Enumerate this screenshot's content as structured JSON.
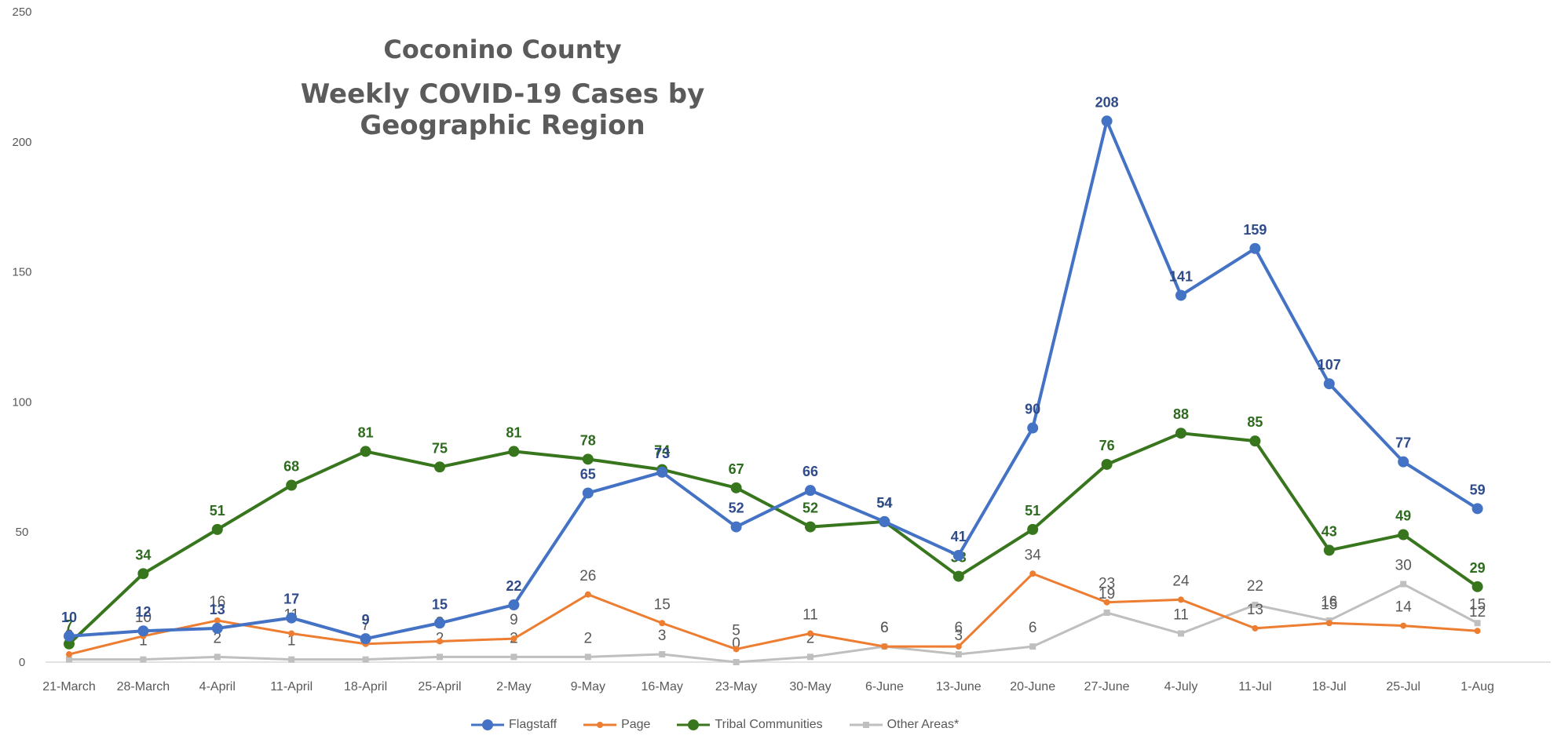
{
  "chart_data": {
    "type": "line",
    "title": "Coconino County",
    "subtitle": "Weekly COVID-19 Cases by Geographic Region",
    "xlabel": "",
    "ylabel": "",
    "ylim": [
      0,
      250
    ],
    "yticks": [
      0,
      50,
      100,
      150,
      200,
      250
    ],
    "grid": false,
    "legend_position": "bottom",
    "categories": [
      "21-March",
      "28-March",
      "4-April",
      "11-April",
      "18-April",
      "25-April",
      "2-May",
      "9-May",
      "16-May",
      "23-May",
      "30-May",
      "6-June",
      "13-June",
      "20-June",
      "27-June",
      "4-July",
      "11-Jul",
      "18-Jul",
      "25-Jul",
      "1-Aug"
    ],
    "series": [
      {
        "name": "Flagstaff",
        "color": "#4472c4",
        "label_color": "#2f4b8a",
        "marker": "circle",
        "values": [
          10,
          12,
          13,
          17,
          9,
          15,
          22,
          65,
          73,
          52,
          66,
          54,
          41,
          90,
          208,
          141,
          159,
          107,
          77,
          59
        ]
      },
      {
        "name": "Page",
        "color": "#ed7d31",
        "label_color": "#595959",
        "marker": "small-circle",
        "values": [
          3,
          10,
          16,
          11,
          7,
          8,
          9,
          26,
          15,
          5,
          11,
          6,
          6,
          34,
          23,
          24,
          13,
          15,
          14,
          12
        ]
      },
      {
        "name": "Tribal Communities",
        "color": "#38761d",
        "label_color": "#2e6b1f",
        "marker": "circle",
        "values": [
          7,
          34,
          51,
          68,
          81,
          75,
          81,
          78,
          74,
          67,
          52,
          54,
          33,
          51,
          76,
          88,
          85,
          43,
          49,
          29
        ]
      },
      {
        "name": "Other Areas*",
        "color": "#bfbfbf",
        "label_color": "#595959",
        "marker": "small-square",
        "values": [
          1,
          1,
          2,
          1,
          1,
          2,
          2,
          2,
          3,
          0,
          2,
          6,
          3,
          6,
          19,
          11,
          22,
          16,
          30,
          15
        ]
      }
    ]
  }
}
